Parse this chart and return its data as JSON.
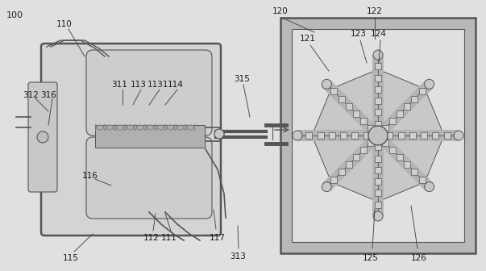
{
  "bg_color": "#e0e0e0",
  "line_color": "#555555",
  "fill_outer": "#d0d0d0",
  "fill_inner": "#c4c4c4",
  "fill_chamber": "#d8d8d8",
  "fill_membrane": "#b8b8b8",
  "fill_arm": "#b0b0b0",
  "fill_triangle": "#c0c0c0"
}
